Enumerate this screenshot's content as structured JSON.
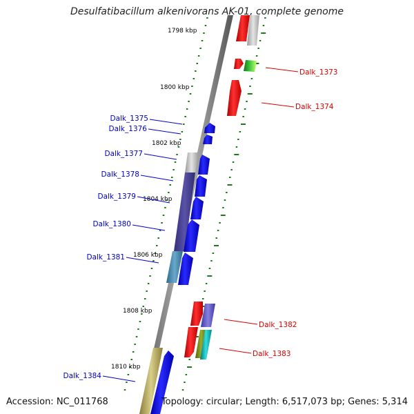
{
  "title": "Desulfatibacillum alkenivorans AK-01, complete genome",
  "accession": "Accession: NC_011768",
  "topology": "Topology: circular; Length: 6,517,073 bp; Genes: 5,314",
  "scale_labels": [
    "1798 kbp",
    "1800 kbp",
    "1802 kbp",
    "1804 kbp",
    "1806 kbp",
    "1808 kbp",
    "1810 kbp"
  ],
  "genes": [
    {
      "label": "Dalk_1373",
      "strand": "forward",
      "color": "#ff0000"
    },
    {
      "label": "Dalk_1374",
      "strand": "forward",
      "color": "#ff0000"
    },
    {
      "label": "Dalk_1375",
      "strand": "reverse",
      "color": "#0000ee"
    },
    {
      "label": "Dalk_1376",
      "strand": "reverse",
      "color": "#0000ee"
    },
    {
      "label": "Dalk_1377",
      "strand": "reverse",
      "color": "#0000ee"
    },
    {
      "label": "Dalk_1378",
      "strand": "reverse",
      "color": "#0000ee"
    },
    {
      "label": "Dalk_1379",
      "strand": "reverse",
      "color": "#0000ee"
    },
    {
      "label": "Dalk_1380",
      "strand": "reverse",
      "color": "#0000ee"
    },
    {
      "label": "Dalk_1381",
      "strand": "reverse",
      "color": "#0000ee"
    },
    {
      "label": "Dalk_1382",
      "strand": "forward",
      "color": "#ff0000"
    },
    {
      "label": "Dalk_1383",
      "strand": "forward",
      "color": "#ff0000"
    },
    {
      "label": "Dalk_1384",
      "strand": "reverse",
      "color": "#0000ee"
    }
  ],
  "colors": {
    "forward_gene": "#ff0000",
    "reverse_gene": "#0000ee",
    "backbone": "#888888",
    "scale": "#1a7a1a",
    "forward_label": "#dd0000",
    "reverse_label": "#0000cc"
  }
}
